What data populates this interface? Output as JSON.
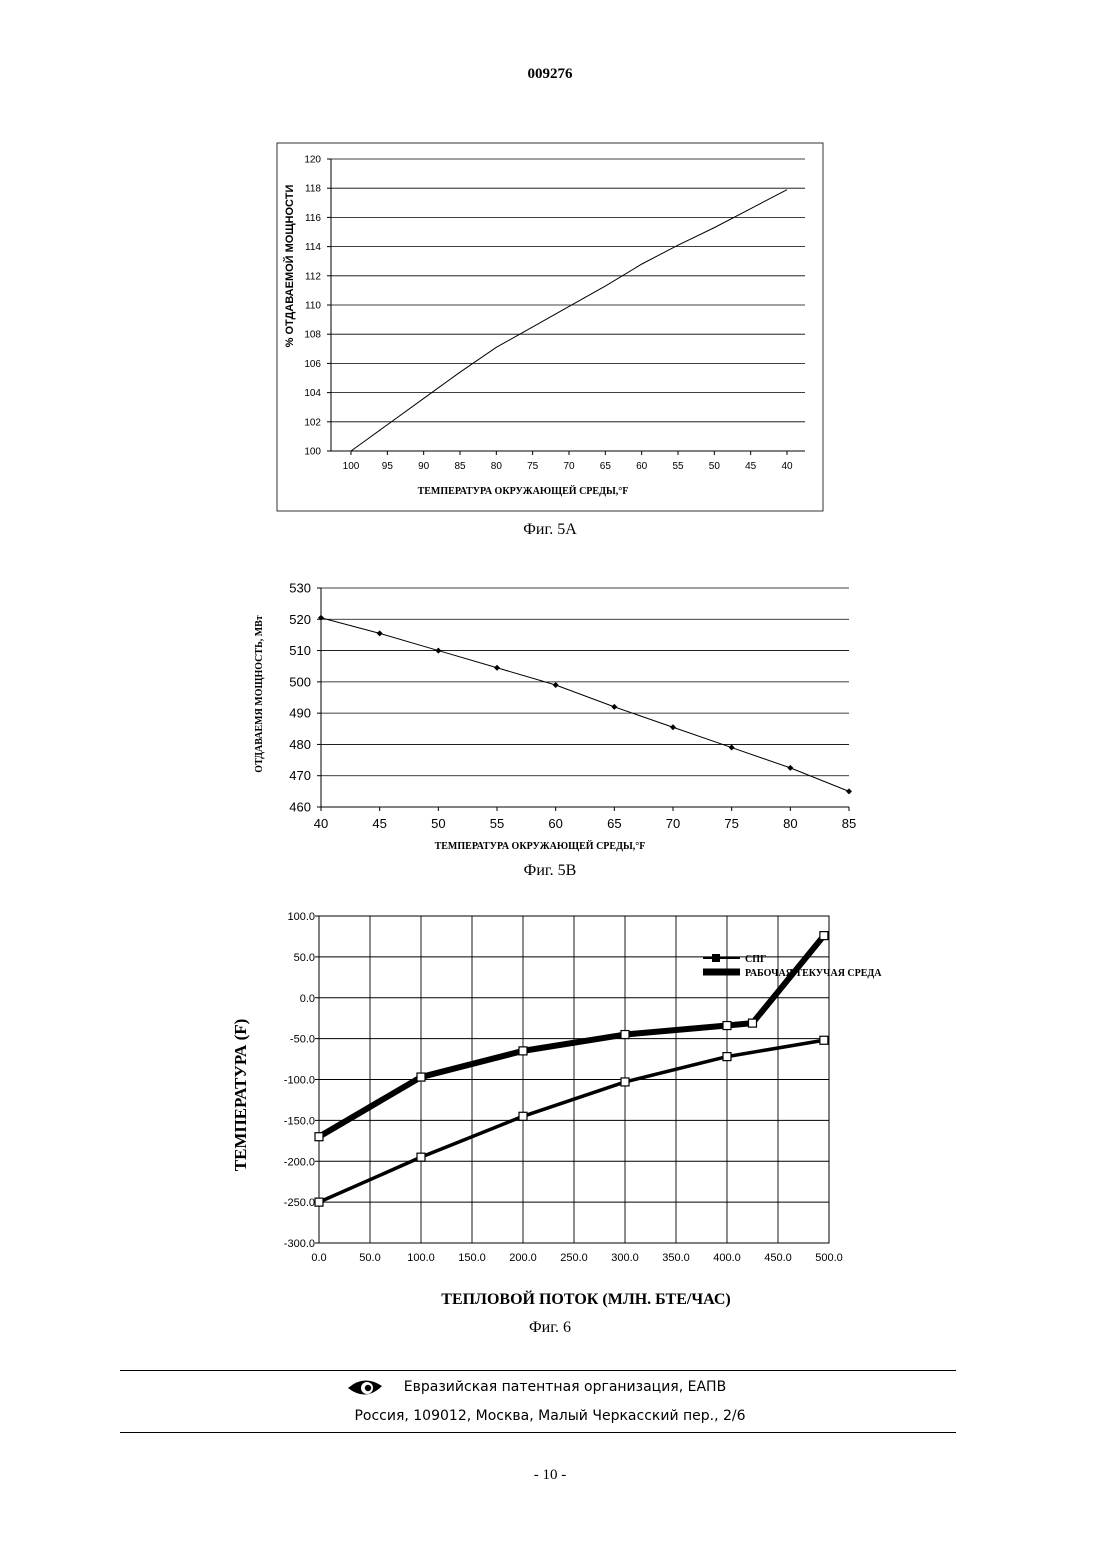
{
  "page": {
    "doc_number": "009276",
    "fig5a_caption": "Фиг. 5А",
    "fig5b_caption": "Фиг. 5В",
    "fig6_caption": "Фиг. 6",
    "footer_org": "Евразийская патентная организация, ЕАПВ",
    "footer_address": "Россия, 109012, Москва, Малый Черкасский пер., 2/6",
    "page_number": "- 10 -",
    "logo_icon": "eapo-eye-logo"
  },
  "chart_data": [
    {
      "type": "line",
      "title": "",
      "xlabel": "ТЕМПЕРАТУРА ОКРУЖАЮЩЕЙ СРЕДЫ,°F",
      "ylabel": "% ОТДАВАЕМОЙ МОЩНОСТИ",
      "x_ticks": [
        "100",
        "95",
        "90",
        "85",
        "80",
        "75",
        "70",
        "65",
        "60",
        "55",
        "50",
        "45",
        "40"
      ],
      "y_ticks": [
        "100",
        "102",
        "104",
        "106",
        "108",
        "110",
        "112",
        "114",
        "116",
        "118",
        "120"
      ],
      "xlim": [
        100,
        40
      ],
      "ylim": [
        100,
        120
      ],
      "grid": "horizontal",
      "series": [
        {
          "x": [
            100,
            95,
            90,
            85,
            80,
            75,
            70,
            65,
            60,
            55,
            50,
            45,
            40
          ],
          "values": [
            100,
            101.8,
            103.6,
            105.4,
            107.1,
            108.5,
            109.9,
            111.3,
            112.8,
            114.1,
            115.3,
            116.6,
            117.9
          ]
        }
      ]
    },
    {
      "type": "line",
      "title": "",
      "xlabel": "ТЕМПЕРАТУРА ОКРУЖАЮЩЕЙ СРЕДЫ,°F",
      "ylabel": "ОТДАВАЕМЯ МОЩНОСТЬ, МВт",
      "x_ticks": [
        "40",
        "45",
        "50",
        "55",
        "60",
        "65",
        "70",
        "75",
        "80",
        "85"
      ],
      "y_ticks": [
        "460",
        "470",
        "480",
        "490",
        "500",
        "510",
        "520",
        "530"
      ],
      "xlim": [
        40,
        85
      ],
      "ylim": [
        460,
        530
      ],
      "grid": "horizontal",
      "series": [
        {
          "x": [
            40,
            45,
            50,
            55,
            60,
            65,
            70,
            75,
            80,
            85
          ],
          "values": [
            520.5,
            515.5,
            510,
            504.5,
            499,
            492,
            485.5,
            479,
            472.5,
            465
          ]
        }
      ]
    },
    {
      "type": "line",
      "title": "",
      "xlabel": "ТЕПЛОВОЙ ПОТОК (МЛН. БТЕ/ЧАС)",
      "ylabel": "ТЕМПЕРАТУРА (F)",
      "x_ticks": [
        "0.0",
        "50.0",
        "100.0",
        "150.0",
        "200.0",
        "250.0",
        "300.0",
        "350.0",
        "400.0",
        "450.0",
        "500.0"
      ],
      "y_ticks": [
        "100.0",
        "50.0",
        "0.0",
        "-50.0",
        "-100.0",
        "-150.0",
        "-200.0",
        "-250.0",
        "-300.0"
      ],
      "xlim": [
        0,
        500
      ],
      "ylim": [
        -300,
        100
      ],
      "grid": "both",
      "legend_position": "top-right",
      "series": [
        {
          "name": "СПГ",
          "x": [
            0,
            100,
            200,
            300,
            400,
            495
          ],
          "values": [
            -250,
            -195,
            -145,
            -103,
            -72,
            -52
          ]
        },
        {
          "name": "РАБОЧАЯ ТЕКУЧАЯ СРЕДА",
          "x": [
            0,
            100,
            200,
            300,
            400,
            425,
            495
          ],
          "values": [
            -170,
            -97,
            -65,
            -45,
            -34,
            -31,
            76
          ]
        }
      ]
    }
  ]
}
